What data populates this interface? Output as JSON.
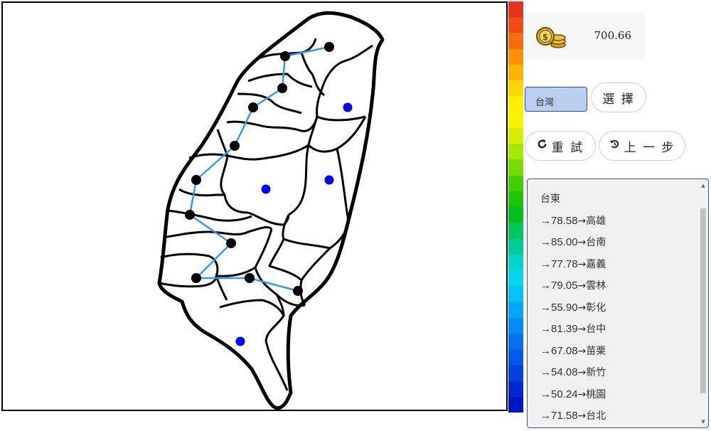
{
  "score": {
    "icon": "coins-icon",
    "value": "700.66"
  },
  "controls": {
    "region_select_value": "台灣",
    "select_button": "選 擇",
    "retry_button": "重 試",
    "undo_button": "上 一 步",
    "retry_icon": "redo-icon",
    "undo_icon": "history-icon"
  },
  "route": {
    "start": "台東",
    "steps": [
      {
        "prefix": "→",
        "distance": "78.58",
        "city": "→高雄"
      },
      {
        "prefix": "→",
        "distance": "85.00",
        "city": "→台南"
      },
      {
        "prefix": "→",
        "distance": "77.78",
        "city": "→嘉義"
      },
      {
        "prefix": "→",
        "distance": "79.05",
        "city": "→雲林"
      },
      {
        "prefix": "→",
        "distance": "55.90",
        "city": "→彰化"
      },
      {
        "prefix": "→",
        "distance": "81.39",
        "city": "→台中"
      },
      {
        "prefix": "→",
        "distance": "67.08",
        "city": "→苗栗"
      },
      {
        "prefix": "→",
        "distance": "54.08",
        "city": "→新竹"
      },
      {
        "prefix": "→",
        "distance": "50.24",
        "city": "→桃園"
      },
      {
        "prefix": "→",
        "distance": "71.58",
        "city": "→台北"
      }
    ]
  },
  "colors": {
    "visited_node": "#000000",
    "unvisited_node": "#0000ff",
    "route_line": "#3399ee",
    "scale": [
      "#e8301a",
      "#f04a12",
      "#f46d0c",
      "#f89008",
      "#fbb404",
      "#fdd500",
      "#ffee00",
      "#f6f400",
      "#d4f000",
      "#a8e800",
      "#78dc00",
      "#44d000",
      "#1ec400",
      "#00c020",
      "#00c660",
      "#00cc99",
      "#00d4cc",
      "#00d8ee",
      "#00c4f8",
      "#00a8f8",
      "#008cf4",
      "#0070ee",
      "#0058e6",
      "#0040dc",
      "#0028d2",
      "#0014c8"
    ]
  }
}
